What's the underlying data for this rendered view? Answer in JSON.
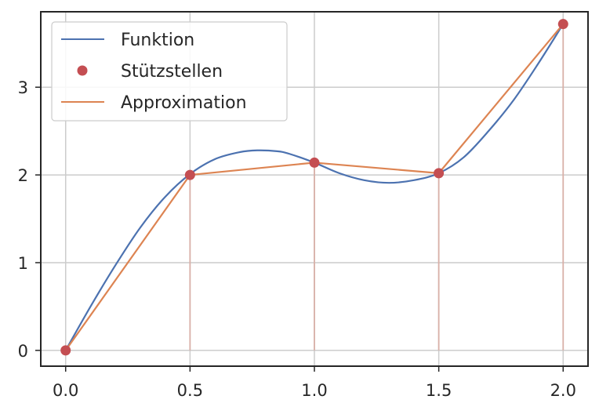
{
  "chart_data": {
    "type": "line",
    "title": "",
    "xlabel": "",
    "ylabel": "",
    "xlim": [
      -0.1,
      2.1
    ],
    "ylim": [
      -0.18,
      3.86
    ],
    "x_ticks": [
      0.0,
      0.5,
      1.0,
      1.5,
      2.0
    ],
    "x_tick_labels": [
      "0.0",
      "0.5",
      "1.0",
      "1.5",
      "2.0"
    ],
    "y_ticks": [
      0,
      1,
      2,
      3
    ],
    "y_tick_labels": [
      "0",
      "1",
      "2",
      "3"
    ],
    "grid": true,
    "legend_position": "upper-left",
    "series": [
      {
        "name": "Funktion",
        "kind": "line",
        "color": "#4c72b0",
        "x": [
          0.0,
          0.1,
          0.2,
          0.3,
          0.4,
          0.5,
          0.6,
          0.7,
          0.77,
          0.85,
          0.9,
          1.0,
          1.1,
          1.2,
          1.3,
          1.4,
          1.5,
          1.6,
          1.7,
          1.8,
          1.9,
          2.0
        ],
        "y": [
          0.0,
          0.5,
          0.97,
          1.4,
          1.75,
          2.01,
          2.18,
          2.26,
          2.28,
          2.27,
          2.24,
          2.14,
          2.02,
          1.94,
          1.91,
          1.94,
          2.02,
          2.2,
          2.5,
          2.85,
          3.27,
          3.72
        ]
      },
      {
        "name": "Stützstellen",
        "kind": "scatter",
        "color": "#c44e52",
        "x": [
          0.0,
          0.5,
          1.0,
          1.5,
          2.0
        ],
        "y": [
          0.0,
          2.0,
          2.14,
          2.02,
          3.72
        ]
      },
      {
        "name": "Approximation",
        "kind": "line",
        "color": "#dd8452",
        "x": [
          0.0,
          0.5,
          1.0,
          1.5,
          2.0
        ],
        "y": [
          0.0,
          2.0,
          2.14,
          2.02,
          3.72
        ]
      }
    ],
    "stems": {
      "color": "#d9b0a8",
      "x": [
        0.5,
        1.0,
        1.5,
        2.0
      ],
      "y": [
        2.0,
        2.14,
        2.02,
        3.72
      ]
    }
  }
}
